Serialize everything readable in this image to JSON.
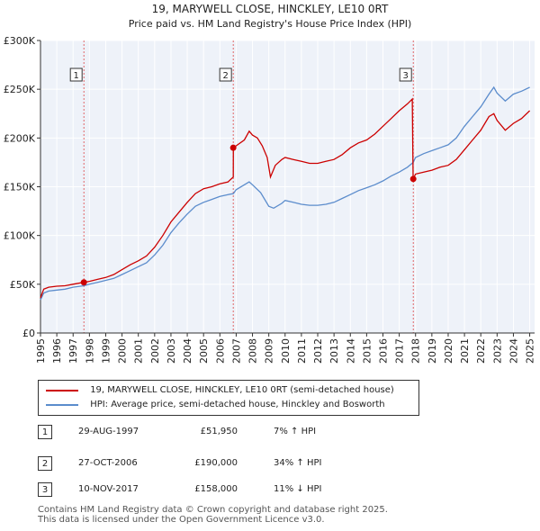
{
  "chart_data": {
    "type": "line",
    "title": "19, MARYWELL CLOSE, HINCKLEY, LE10 0RT",
    "subtitle": "Price paid vs. HM Land Registry's House Price Index (HPI)",
    "xlabel": "",
    "ylabel": "",
    "xlim": [
      1995,
      2025.3
    ],
    "ylim": [
      0,
      300000
    ],
    "x_ticks": [
      1995,
      1996,
      1997,
      1998,
      1999,
      2000,
      2001,
      2002,
      2003,
      2004,
      2005,
      2006,
      2007,
      2008,
      2009,
      2010,
      2011,
      2012,
      2013,
      2014,
      2015,
      2016,
      2017,
      2018,
      2019,
      2020,
      2021,
      2022,
      2023,
      2024,
      2025
    ],
    "y_ticks": [
      0,
      50000,
      100000,
      150000,
      200000,
      250000,
      300000
    ],
    "y_tick_labels": [
      "£0",
      "£50K",
      "£100K",
      "£150K",
      "£200K",
      "£250K",
      "£300K"
    ],
    "grid": true,
    "series": [
      {
        "name": "19, MARYWELL CLOSE, HINCKLEY, LE10 0RT (semi-detached house)",
        "color": "#cc0000",
        "points": [
          [
            1995,
            36000
          ],
          [
            1995.2,
            45000
          ],
          [
            1995.5,
            47000
          ],
          [
            1996,
            48000
          ],
          [
            1996.5,
            48500
          ],
          [
            1997,
            50000
          ],
          [
            1997.66,
            51950
          ],
          [
            1998,
            53000
          ],
          [
            1998.5,
            55000
          ],
          [
            1999,
            57000
          ],
          [
            1999.5,
            60000
          ],
          [
            2000,
            65000
          ],
          [
            2000.5,
            70000
          ],
          [
            2001,
            74000
          ],
          [
            2001.5,
            79000
          ],
          [
            2002,
            88000
          ],
          [
            2002.5,
            100000
          ],
          [
            2003,
            114000
          ],
          [
            2003.5,
            124000
          ],
          [
            2004,
            134000
          ],
          [
            2004.5,
            143000
          ],
          [
            2005,
            148000
          ],
          [
            2005.5,
            150000
          ],
          [
            2006,
            153000
          ],
          [
            2006.5,
            155000
          ],
          [
            2006.82,
            160000
          ],
          [
            2006.83,
            190000
          ],
          [
            2007,
            192000
          ],
          [
            2007.5,
            198000
          ],
          [
            2007.8,
            207000
          ],
          [
            2008,
            203000
          ],
          [
            2008.3,
            200000
          ],
          [
            2008.6,
            192000
          ],
          [
            2008.9,
            180000
          ],
          [
            2009.1,
            160000
          ],
          [
            2009.4,
            172000
          ],
          [
            2009.8,
            178000
          ],
          [
            2010,
            180000
          ],
          [
            2010.5,
            178000
          ],
          [
            2011,
            176000
          ],
          [
            2011.5,
            174000
          ],
          [
            2012,
            174000
          ],
          [
            2012.5,
            176000
          ],
          [
            2013,
            178000
          ],
          [
            2013.5,
            183000
          ],
          [
            2014,
            190000
          ],
          [
            2014.5,
            195000
          ],
          [
            2015,
            198000
          ],
          [
            2015.5,
            204000
          ],
          [
            2016,
            212000
          ],
          [
            2016.5,
            220000
          ],
          [
            2017,
            228000
          ],
          [
            2017.5,
            235000
          ],
          [
            2017.8,
            240000
          ],
          [
            2017.85,
            160000
          ],
          [
            2017.86,
            158000
          ],
          [
            2018,
            163000
          ],
          [
            2018.5,
            165000
          ],
          [
            2019,
            167000
          ],
          [
            2019.5,
            170000
          ],
          [
            2020,
            172000
          ],
          [
            2020.5,
            178000
          ],
          [
            2021,
            188000
          ],
          [
            2021.5,
            198000
          ],
          [
            2022,
            208000
          ],
          [
            2022.5,
            222000
          ],
          [
            2022.8,
            225000
          ],
          [
            2023,
            218000
          ],
          [
            2023.5,
            208000
          ],
          [
            2024,
            215000
          ],
          [
            2024.5,
            220000
          ],
          [
            2025,
            228000
          ]
        ]
      },
      {
        "name": "HPI: Average price, semi-detached house, Hinckley and Bosworth",
        "color": "#5b8ccc",
        "points": [
          [
            1995,
            34000
          ],
          [
            1995.2,
            41000
          ],
          [
            1995.5,
            43000
          ],
          [
            1996,
            44000
          ],
          [
            1996.5,
            45000
          ],
          [
            1997,
            47000
          ],
          [
            1997.66,
            48500
          ],
          [
            1998,
            50000
          ],
          [
            1998.5,
            52000
          ],
          [
            1999,
            54000
          ],
          [
            1999.5,
            56000
          ],
          [
            2000,
            60000
          ],
          [
            2000.5,
            64000
          ],
          [
            2001,
            68000
          ],
          [
            2001.5,
            72000
          ],
          [
            2002,
            80000
          ],
          [
            2002.5,
            90000
          ],
          [
            2003,
            103000
          ],
          [
            2003.5,
            113000
          ],
          [
            2004,
            122000
          ],
          [
            2004.5,
            130000
          ],
          [
            2005,
            134000
          ],
          [
            2005.5,
            137000
          ],
          [
            2006,
            140000
          ],
          [
            2006.5,
            142000
          ],
          [
            2006.83,
            143000
          ],
          [
            2007,
            147000
          ],
          [
            2007.5,
            152000
          ],
          [
            2007.8,
            155000
          ],
          [
            2008,
            152000
          ],
          [
            2008.5,
            144000
          ],
          [
            2009,
            130000
          ],
          [
            2009.3,
            128000
          ],
          [
            2009.8,
            133000
          ],
          [
            2010,
            136000
          ],
          [
            2010.5,
            134000
          ],
          [
            2011,
            132000
          ],
          [
            2011.5,
            131000
          ],
          [
            2012,
            131000
          ],
          [
            2012.5,
            132000
          ],
          [
            2013,
            134000
          ],
          [
            2013.5,
            138000
          ],
          [
            2014,
            142000
          ],
          [
            2014.5,
            146000
          ],
          [
            2015,
            149000
          ],
          [
            2015.5,
            152000
          ],
          [
            2016,
            156000
          ],
          [
            2016.5,
            161000
          ],
          [
            2017,
            165000
          ],
          [
            2017.5,
            170000
          ],
          [
            2017.86,
            175000
          ],
          [
            2018,
            180000
          ],
          [
            2018.5,
            184000
          ],
          [
            2019,
            187000
          ],
          [
            2019.5,
            190000
          ],
          [
            2020,
            193000
          ],
          [
            2020.5,
            200000
          ],
          [
            2021,
            212000
          ],
          [
            2021.5,
            222000
          ],
          [
            2022,
            232000
          ],
          [
            2022.5,
            245000
          ],
          [
            2022.8,
            252000
          ],
          [
            2023,
            246000
          ],
          [
            2023.5,
            238000
          ],
          [
            2024,
            245000
          ],
          [
            2024.5,
            248000
          ],
          [
            2025,
            252000
          ]
        ]
      }
    ],
    "annotations": [
      {
        "label": "1",
        "x": 1997.66,
        "y": 51950
      },
      {
        "label": "2",
        "x": 2006.82,
        "y": 190000
      },
      {
        "label": "3",
        "x": 2017.86,
        "y": 158000
      }
    ]
  },
  "legend": {
    "property_label": "19, MARYWELL CLOSE, HINCKLEY, LE10 0RT (semi-detached house)",
    "hpi_label": "HPI: Average price, semi-detached house, Hinckley and Bosworth",
    "property_color": "#cc0000",
    "hpi_color": "#5b8ccc"
  },
  "sales": [
    {
      "num": "1",
      "date": "29-AUG-1997",
      "price": "£51,950",
      "hpi": "7% ↑ HPI"
    },
    {
      "num": "2",
      "date": "27-OCT-2006",
      "price": "£190,000",
      "hpi": "34% ↑ HPI"
    },
    {
      "num": "3",
      "date": "10-NOV-2017",
      "price": "£158,000",
      "hpi": "11% ↓ HPI"
    }
  ],
  "footer": {
    "line1": "Contains HM Land Registry data © Crown copyright and database right 2025.",
    "line2": "This data is licensed under the Open Government Licence v3.0."
  }
}
